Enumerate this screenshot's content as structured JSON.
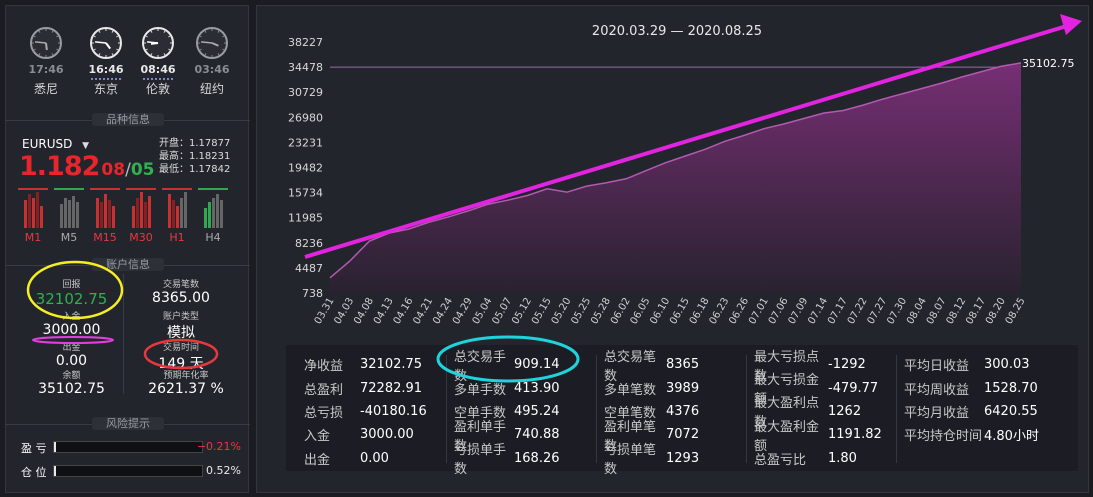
{
  "clocks": [
    {
      "time": "17:46",
      "city": "悉尼",
      "active": false
    },
    {
      "time": "16:46",
      "city": "东京",
      "active": true
    },
    {
      "time": "08:46",
      "city": "伦敦",
      "active": true
    },
    {
      "time": "03:46",
      "city": "纽约",
      "active": false
    }
  ],
  "symbol": {
    "header": "品种信息",
    "name": "EURUSD",
    "price_main": "1.182",
    "price_small": "08",
    "price_sep": "/",
    "day": "05",
    "open_label": "开盘：",
    "open": "1.17877",
    "high_label": "最高：",
    "high": "1.18231",
    "low_label": "最低：",
    "low": "1.17842",
    "timeframes": [
      "M1",
      "M5",
      "M15",
      "M30",
      "H1",
      "H4"
    ]
  },
  "account": {
    "header": "账户信息",
    "return_label": "回报",
    "return_value": "32102.75",
    "trades_label": "交易笔数",
    "trades_value": "8365.00",
    "deposit_label": "入金",
    "deposit_value": "3000.00",
    "type_label": "账户类型",
    "type_value": "模拟",
    "withdraw_label": "出金",
    "withdraw_value": "0.00",
    "time_label": "交易时间",
    "time_value": "149 天",
    "balance_label": "余额",
    "balance_value": "35102.75",
    "annual_label": "预期年化率",
    "annual_value": "2621.37 %"
  },
  "risk": {
    "header": "风险提示",
    "profit_label": "盈 亏",
    "profit_value": "−0.21%",
    "position_label": "仓 位",
    "position_value": "0.52%"
  },
  "chart_data": {
    "type": "area",
    "title": "2020.03.29 — 2020.08.25",
    "last_value_label": "35102.75",
    "y_ticks": [
      738,
      4487,
      8236,
      11985,
      15734,
      19482,
      23231,
      26980,
      30729,
      34478,
      38227
    ],
    "ylim": [
      738,
      38227
    ],
    "x_labels": [
      "03.31",
      "04.03",
      "04.08",
      "04.13",
      "04.16",
      "04.21",
      "04.24",
      "04.29",
      "05.04",
      "05.07",
      "05.12",
      "05.15",
      "05.20",
      "05.25",
      "05.28",
      "06.02",
      "06.05",
      "06.10",
      "06.15",
      "06.18",
      "06.23",
      "06.26",
      "07.01",
      "07.06",
      "07.09",
      "07.14",
      "07.17",
      "07.22",
      "07.27",
      "07.30",
      "08.04",
      "08.07",
      "08.12",
      "08.17",
      "08.20",
      "08.25"
    ],
    "values": [
      3000,
      5500,
      8500,
      9700,
      10300,
      11300,
      12100,
      13000,
      14000,
      14600,
      15300,
      16300,
      15800,
      16700,
      17200,
      17800,
      19000,
      20200,
      21200,
      22200,
      23400,
      24300,
      25300,
      26000,
      26800,
      27600,
      28000,
      28800,
      29700,
      30500,
      31300,
      32100,
      33000,
      33800,
      34600,
      35102.75
    ],
    "ref_line": 34478
  },
  "stats": {
    "columns": [
      [
        {
          "k": "净收益",
          "v": "32102.75"
        },
        {
          "k": "总盈利",
          "v": "72282.91"
        },
        {
          "k": "总亏损",
          "v": "-40180.16"
        },
        {
          "k": "入金",
          "v": "3000.00"
        },
        {
          "k": "出金",
          "v": "0.00"
        }
      ],
      [
        {
          "k": "总交易手数",
          "v": "909.14"
        },
        {
          "k": "多单手数",
          "v": "413.90"
        },
        {
          "k": "空单手数",
          "v": "495.24"
        },
        {
          "k": "盈利单手数",
          "v": "740.88"
        },
        {
          "k": "亏损单手数",
          "v": "168.26"
        }
      ],
      [
        {
          "k": "总交易笔数",
          "v": "8365"
        },
        {
          "k": "多单笔数",
          "v": "3989"
        },
        {
          "k": "空单笔数",
          "v": "4376"
        },
        {
          "k": "盈利单笔数",
          "v": "7072"
        },
        {
          "k": "亏损单笔数",
          "v": "1293"
        }
      ],
      [
        {
          "k": "最大亏损点数",
          "v": "-1292"
        },
        {
          "k": "最大亏损金额",
          "v": "-479.77"
        },
        {
          "k": "最大盈利点数",
          "v": "1262"
        },
        {
          "k": "最大盈利金额",
          "v": "1191.82"
        },
        {
          "k": "总盈亏比",
          "v": "1.80"
        }
      ],
      [
        {
          "k": "平均日收益",
          "v": "300.03"
        },
        {
          "k": "平均周收益",
          "v": "1528.70"
        },
        {
          "k": "平均月收益",
          "v": "6420.55"
        },
        {
          "k": "平均持仓时间",
          "v": "4.80小时"
        }
      ]
    ]
  }
}
